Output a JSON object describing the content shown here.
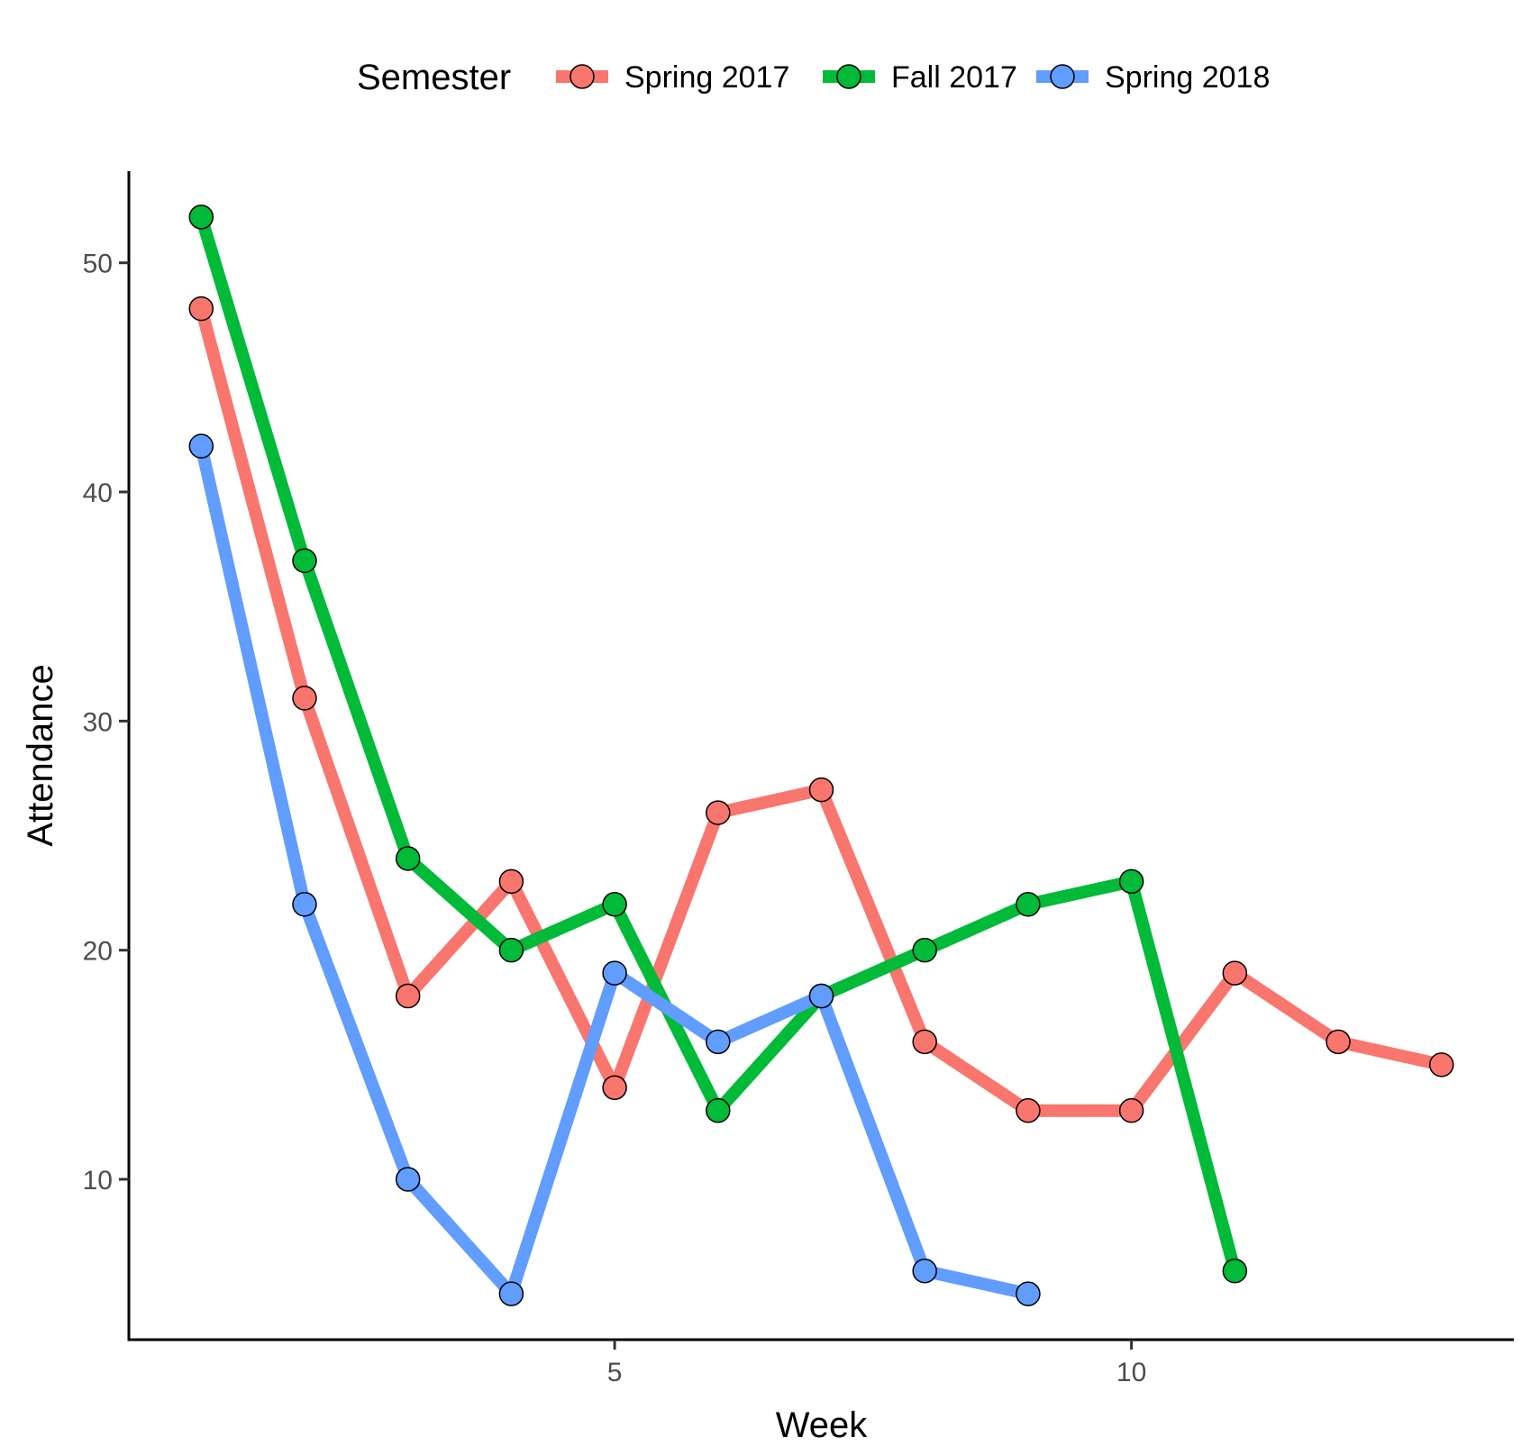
{
  "chart_data": {
    "type": "line",
    "xlabel": "Week",
    "ylabel": "Attendance",
    "xlim": [
      0.3,
      13.7
    ],
    "ylim": [
      3.0,
      54.0
    ],
    "xticks": [
      5,
      10
    ],
    "yticks": [
      10,
      20,
      30,
      40,
      50
    ],
    "grid": false,
    "legend": {
      "title": "Semester",
      "position": "top"
    },
    "series": [
      {
        "name": "Spring 2017",
        "color": "#F8766D",
        "x": [
          1,
          2,
          3,
          4,
          5,
          6,
          7,
          8,
          9,
          10,
          11,
          12,
          13
        ],
        "values": [
          48,
          31,
          18,
          23,
          14,
          26,
          27,
          16,
          13,
          13,
          19,
          16,
          15
        ]
      },
      {
        "name": "Fall 2017",
        "color": "#00BA38",
        "x": [
          1,
          2,
          3,
          4,
          5,
          6,
          7,
          8,
          9,
          10,
          11
        ],
        "values": [
          52,
          37,
          24,
          20,
          22,
          13,
          18,
          20,
          22,
          23,
          6
        ]
      },
      {
        "name": "Spring 2018",
        "color": "#619CFF",
        "x": [
          1,
          2,
          3,
          4,
          5,
          6,
          7,
          8,
          9
        ],
        "values": [
          42,
          22,
          10,
          5,
          19,
          16,
          18,
          6,
          5
        ]
      }
    ]
  }
}
